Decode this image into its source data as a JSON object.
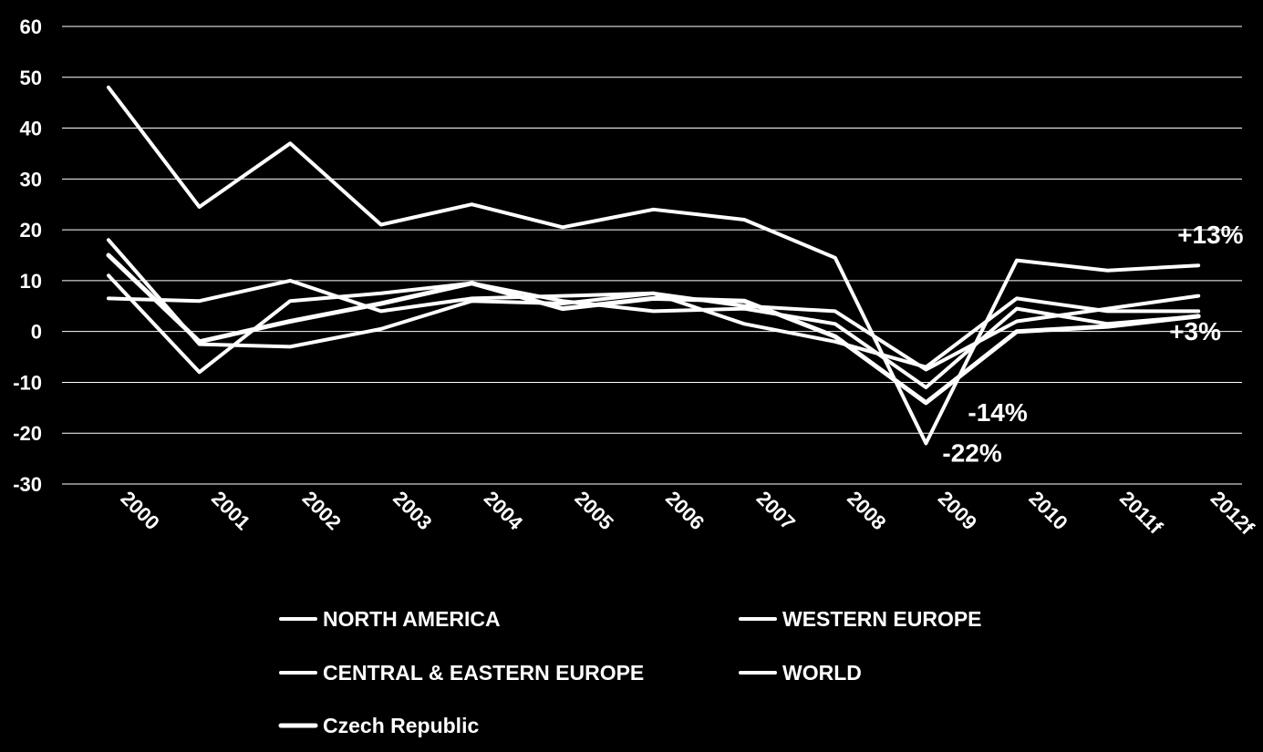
{
  "chart_data": {
    "type": "line",
    "categories": [
      "2000",
      "2001",
      "2002",
      "2003",
      "2004",
      "2005",
      "2006",
      "2007",
      "2008",
      "2009",
      "2010",
      "2011f",
      "2012f"
    ],
    "ylim": [
      -30,
      60
    ],
    "yticks": [
      60,
      50,
      40,
      30,
      20,
      10,
      0,
      -10,
      -20,
      -30
    ],
    "grid": true,
    "legend_position": "bottom",
    "line_color": "#ffffff",
    "background": "#000000",
    "series": [
      {
        "name": "NORTH AMERICA",
        "values": [
          18,
          -2.5,
          -3,
          0.5,
          6,
          5.5,
          7.5,
          1.5,
          -2,
          -7,
          6.5,
          4,
          4
        ]
      },
      {
        "name": "WESTERN EUROPE",
        "values": [
          6.5,
          6,
          10,
          4,
          6.5,
          7,
          7.5,
          5,
          4,
          -7.5,
          2,
          4.5,
          7
        ]
      },
      {
        "name": "CENTRAL & EASTERN EUROPE",
        "values": [
          11,
          -8,
          6,
          7.5,
          9.5,
          6,
          4,
          4.5,
          1.5,
          -11,
          4.5,
          1.5,
          3
        ]
      },
      {
        "name": "WORLD",
        "values": [
          48,
          24.5,
          37,
          21,
          25,
          20.5,
          24,
          22,
          14.5,
          -22,
          14,
          12,
          13
        ]
      },
      {
        "name": "Czech Republic",
        "values": [
          15,
          -2,
          2,
          5.5,
          9.5,
          4.5,
          6.5,
          6,
          -1,
          -14,
          0,
          1,
          3
        ]
      }
    ],
    "annotations": [
      {
        "text": "+13%",
        "x": "2012f",
        "y": 13
      },
      {
        "text": "+3%",
        "x": "2012f",
        "y": 3
      },
      {
        "text": "-14%",
        "x": "2009",
        "y": -14
      },
      {
        "text": "-22%",
        "x": "2009",
        "y": -22
      }
    ]
  }
}
